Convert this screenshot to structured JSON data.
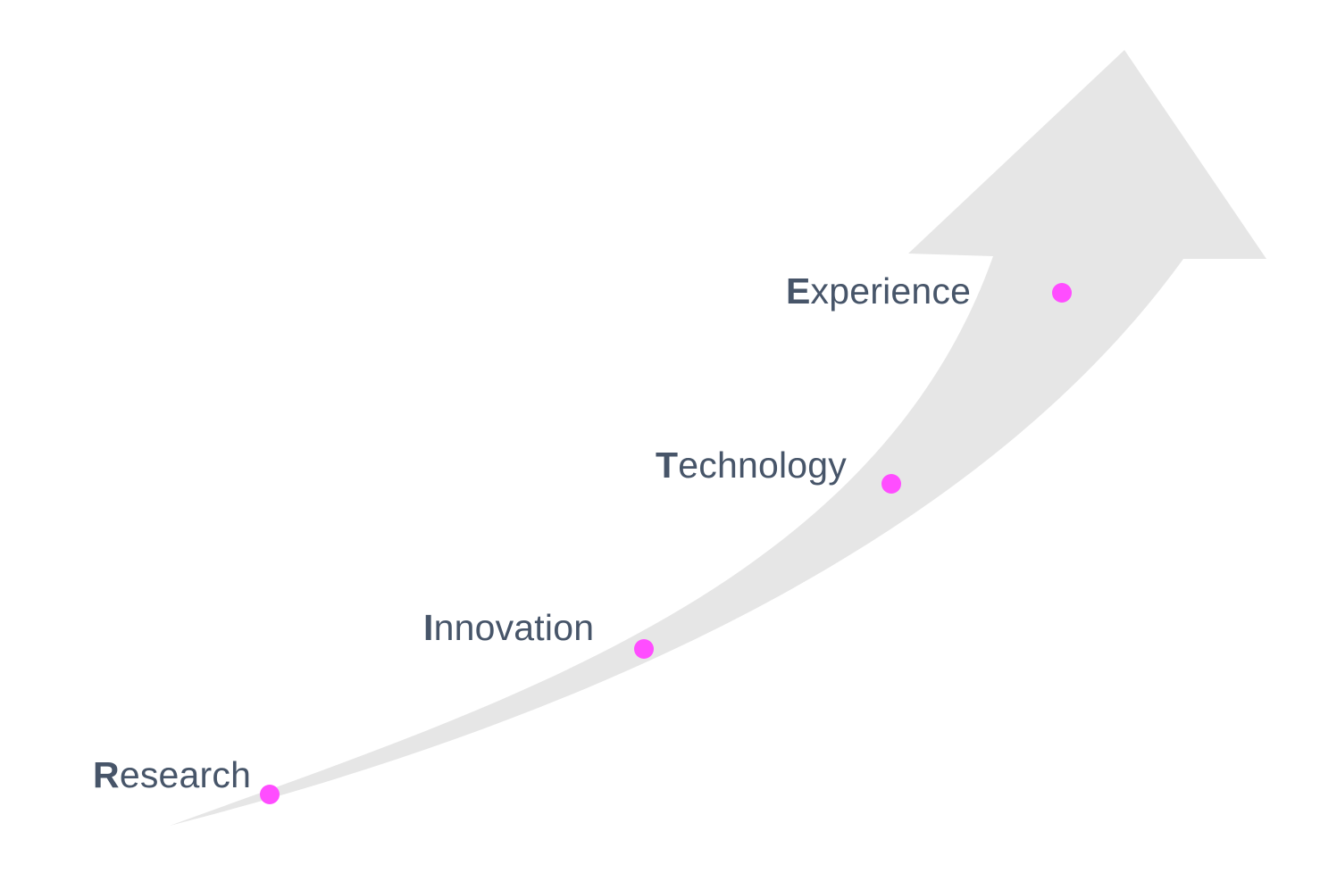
{
  "colors": {
    "arrow_fill": "#e6e6e6",
    "dot_fill": "#ff4dff",
    "label_text": "#475569",
    "background": "#ffffff"
  },
  "diagram": {
    "stages": [
      {
        "initial": "R",
        "rest": "esearch"
      },
      {
        "initial": "I",
        "rest": "nnovation"
      },
      {
        "initial": "T",
        "rest": "echnology"
      },
      {
        "initial": "E",
        "rest": "xperience"
      }
    ]
  }
}
